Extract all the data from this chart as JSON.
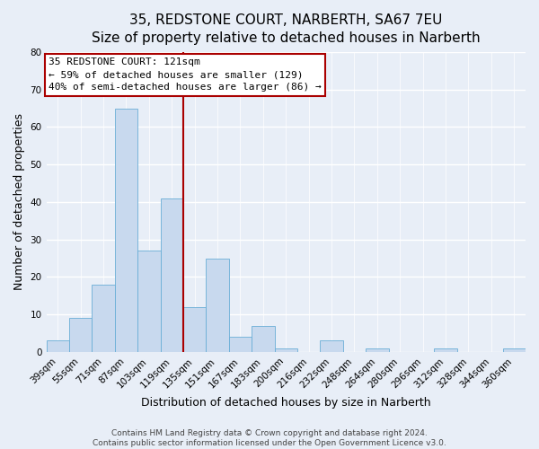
{
  "title": "35, REDSTONE COURT, NARBERTH, SA67 7EU",
  "subtitle": "Size of property relative to detached houses in Narberth",
  "xlabel": "Distribution of detached houses by size in Narberth",
  "ylabel": "Number of detached properties",
  "bar_labels": [
    "39sqm",
    "55sqm",
    "71sqm",
    "87sqm",
    "103sqm",
    "119sqm",
    "135sqm",
    "151sqm",
    "167sqm",
    "183sqm",
    "200sqm",
    "216sqm",
    "232sqm",
    "248sqm",
    "264sqm",
    "280sqm",
    "296sqm",
    "312sqm",
    "328sqm",
    "344sqm",
    "360sqm"
  ],
  "bar_values": [
    3,
    9,
    18,
    65,
    27,
    41,
    12,
    25,
    4,
    7,
    1,
    0,
    3,
    0,
    1,
    0,
    0,
    1,
    0,
    0,
    1
  ],
  "bar_color": "#c8d9ee",
  "bar_edge_color": "#6aaed6",
  "vline_x_index": 5.5,
  "vline_color": "#aa0000",
  "ylim": [
    0,
    80
  ],
  "yticks": [
    0,
    10,
    20,
    30,
    40,
    50,
    60,
    70,
    80
  ],
  "annotation_title": "35 REDSTONE COURT: 121sqm",
  "annotation_line1": "← 59% of detached houses are smaller (129)",
  "annotation_line2": "40% of semi-detached houses are larger (86) →",
  "annotation_box_color": "#ffffff",
  "annotation_box_edge": "#aa0000",
  "footer_line1": "Contains HM Land Registry data © Crown copyright and database right 2024.",
  "footer_line2": "Contains public sector information licensed under the Open Government Licence v3.0.",
  "background_color": "#e8eef7",
  "plot_background_color": "#e8eef7",
  "title_fontsize": 11,
  "subtitle_fontsize": 10,
  "axis_label_fontsize": 9,
  "tick_fontsize": 7.5,
  "annotation_fontsize": 8,
  "footer_fontsize": 6.5
}
